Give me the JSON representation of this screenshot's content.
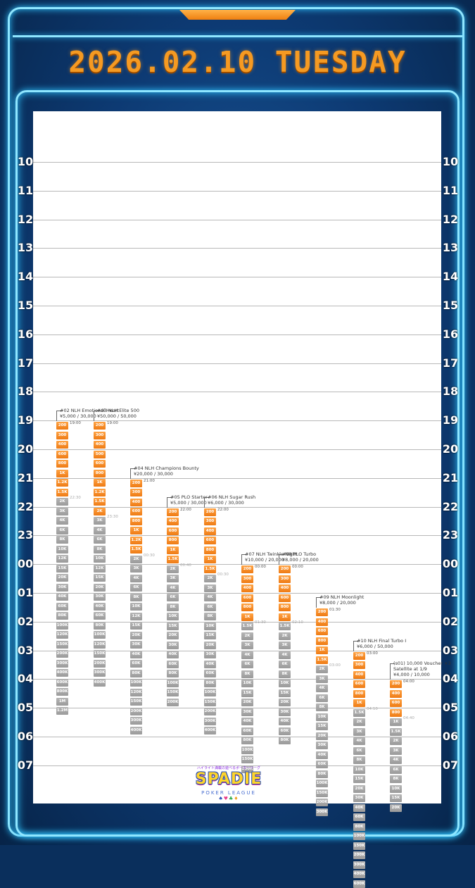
{
  "header": {
    "date_title": "2026.02.10 TUESDAY"
  },
  "hours": [
    "10",
    "11",
    "12",
    "13",
    "14",
    "15",
    "16",
    "17",
    "18",
    "19",
    "20",
    "21",
    "22",
    "23",
    "00",
    "01",
    "02",
    "03",
    "04",
    "05",
    "06",
    "07"
  ],
  "events": [
    {
      "title": "#02 NLH Emotional Heart",
      "buyin": "¥5,000 / 30,000",
      "start": "19:00",
      "late_reg": "22:30",
      "start_hour": 19.0,
      "blinds_orange": [
        "200",
        "300",
        "400",
        "600",
        "800",
        "1K",
        "1.2K",
        "1.5K"
      ],
      "blinds_gray": [
        "2K",
        "3K",
        "4K",
        "6K",
        "8K",
        "10K",
        "12K",
        "15K",
        "20K",
        "30K",
        "40K",
        "60K",
        "80K",
        "100K",
        "120K",
        "150K",
        "200K",
        "300K",
        "400K",
        "600K",
        "800K",
        "1M",
        "1.2M"
      ]
    },
    {
      "title": "#03 NLH Elite 500",
      "buyin": "¥50,000 / 50,000",
      "start": "19:00",
      "late_reg": "23:30",
      "start_hour": 19.0,
      "blinds_orange": [
        "200",
        "300",
        "400",
        "500",
        "600",
        "800",
        "1K",
        "1.2K",
        "1.5K",
        "2K"
      ],
      "blinds_gray": [
        "3K",
        "4K",
        "6K",
        "8K",
        "10K",
        "12K",
        "15K",
        "20K",
        "30K",
        "40K",
        "60K",
        "80K",
        "100K",
        "120K",
        "150K",
        "200K",
        "300K",
        "400K"
      ]
    },
    {
      "title": "#04 NLH Champions Bounty",
      "buyin": "¥20,000 / 30,000",
      "start": "21:00",
      "late_reg": "00:30",
      "start_hour": 21.0,
      "blinds_orange": [
        "200",
        "300",
        "400",
        "600",
        "800",
        "1K",
        "1.2K",
        "1.5K"
      ],
      "blinds_gray": [
        "2K",
        "3K",
        "4K",
        "6K",
        "8K",
        "10K",
        "12K",
        "15K",
        "20K",
        "30K",
        "40K",
        "60K",
        "80K",
        "100K",
        "120K",
        "150K",
        "200K",
        "300K",
        "400K"
      ]
    },
    {
      "title": "#05 PLO Starter",
      "buyin": "¥5,000 / 30,000",
      "start": "22:00",
      "late_reg": "00:40",
      "start_hour": 22.0,
      "blinds_orange": [
        "200",
        "400",
        "600",
        "800",
        "1K",
        "1.5K"
      ],
      "blinds_gray": [
        "2K",
        "3K",
        "4K",
        "6K",
        "8K",
        "10K",
        "15K",
        "20K",
        "30K",
        "40K",
        "60K",
        "80K",
        "100K",
        "150K",
        "200K"
      ]
    },
    {
      "title": "#06 NLH Sugar Rush",
      "buyin": "¥6,000 / 30,000",
      "start": "22:00",
      "late_reg": "00:30",
      "start_hour": 22.0,
      "blinds_orange": [
        "200",
        "300",
        "400",
        "600",
        "800",
        "1K",
        "1.5K"
      ],
      "blinds_gray": [
        "2K",
        "3K",
        "4K",
        "6K",
        "8K",
        "10K",
        "15K",
        "20K",
        "30K",
        "40K",
        "60K",
        "80K",
        "100K",
        "150K",
        "200K",
        "300K",
        "400K"
      ]
    },
    {
      "title": "#07 NLH Twinkle Night",
      "buyin": "¥10,000 / 20,000",
      "start": "00:00",
      "late_reg": "01:30",
      "start_hour": 24.0,
      "blinds_orange": [
        "200",
        "300",
        "400",
        "600",
        "800",
        "1K"
      ],
      "blinds_gray": [
        "1.5K",
        "2K",
        "3K",
        "4K",
        "6K",
        "8K",
        "10K",
        "15K",
        "20K",
        "30K",
        "40K",
        "60K",
        "80K",
        "100K",
        "150K",
        "200K"
      ]
    },
    {
      "title": "#08 PLO Turbo",
      "buyin": "¥8,000 / 20,000",
      "start": "00:00",
      "late_reg": "02:10",
      "start_hour": 24.0,
      "blinds_orange": [
        "200",
        "300",
        "400",
        "600",
        "800",
        "1K"
      ],
      "blinds_gray": [
        "1.5K",
        "2K",
        "3K",
        "4K",
        "6K",
        "8K",
        "10K",
        "15K",
        "20K",
        "30K",
        "40K",
        "60K",
        "80K"
      ]
    },
    {
      "title": "#09 NLH Moonlight",
      "buyin": "¥8,000 / 20,000",
      "start": "01:30",
      "late_reg": "03:00",
      "start_hour": 25.5,
      "blinds_orange": [
        "200",
        "400",
        "600",
        "800",
        "1K",
        "1.5K"
      ],
      "blinds_gray": [
        "2K",
        "3K",
        "4K",
        "6K",
        "8K",
        "10K",
        "15K",
        "20K",
        "30K",
        "40K",
        "60K",
        "80K",
        "100K",
        "150K",
        "200K",
        "300K"
      ]
    },
    {
      "title": "#10 NLH Final Turbo Ⅰ",
      "buyin": "¥6,000 / 50,000",
      "start": "03:00",
      "late_reg": "04:10",
      "start_hour": 27.0,
      "blinds_orange": [
        "200",
        "300",
        "400",
        "600",
        "800",
        "1K"
      ],
      "blinds_gray": [
        "1.5K",
        "2K",
        "3K",
        "4K",
        "6K",
        "8K",
        "10K",
        "15K",
        "20K",
        "30K",
        "40K",
        "60K",
        "80K",
        "100K",
        "150K",
        "200K",
        "300K",
        "400K",
        "600K"
      ]
    },
    {
      "title": "(s01) 10,000 Voucher ×3\nSatellite at 1/9",
      "buyin": "¥4,000 / 10,000",
      "start": "04:00",
      "late_reg": "04:40",
      "start_hour": 28.0,
      "blinds_orange": [
        "200",
        "400",
        "600",
        "800"
      ],
      "blinds_gray": [
        "1K",
        "1.5K",
        "2K",
        "3K",
        "4K",
        "6K",
        "8K",
        "10K",
        "15K",
        "20K"
      ]
    }
  ],
  "logo": {
    "subtitle": "ハイライト満載の遊べるポーカーリーグ",
    "name": "SPADIE",
    "tagline": "POKER LEAGUE",
    "suits": "♠♥♣♦"
  }
}
